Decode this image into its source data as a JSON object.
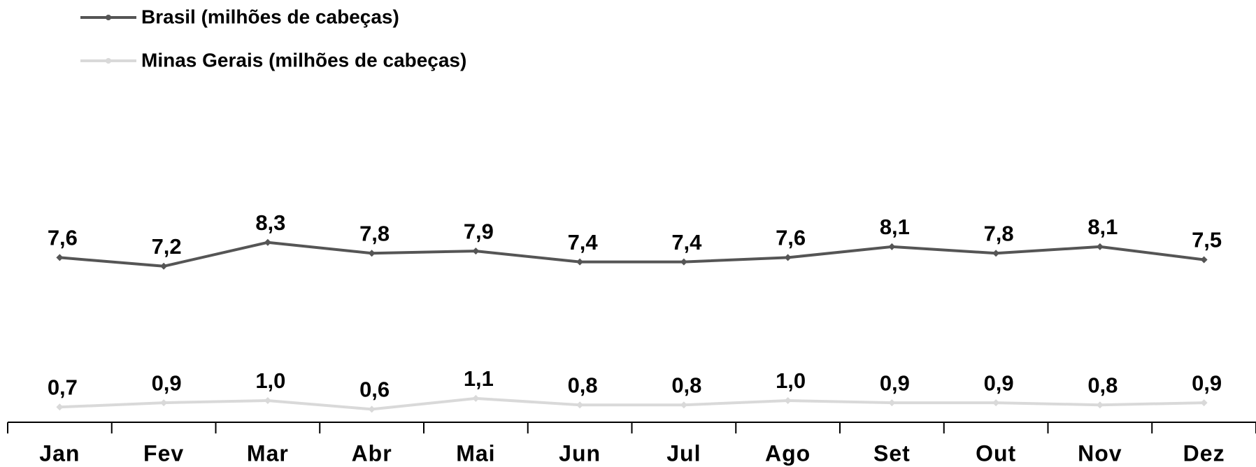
{
  "chart_data": {
    "type": "line",
    "categories": [
      "Jan",
      "Fev",
      "Mar",
      "Abr",
      "Mai",
      "Jun",
      "Jul",
      "Ago",
      "Set",
      "Out",
      "Nov",
      "Dez"
    ],
    "ylim": [
      0,
      18
    ],
    "series": [
      {
        "name": "Brasil (milhões de cabeças)",
        "color": "#555555",
        "values": [
          7.6,
          7.2,
          8.3,
          7.8,
          7.9,
          7.4,
          7.4,
          7.6,
          8.1,
          7.8,
          8.1,
          7.5
        ],
        "value_labels": [
          "7,6",
          "7,2",
          "8,3",
          "7,8",
          "7,9",
          "7,4",
          "7,4",
          "7,6",
          "8,1",
          "7,8",
          "8,1",
          "7,5"
        ]
      },
      {
        "name": "Minas Gerais (milhões de cabeças)",
        "color": "#d9d9d9",
        "values": [
          0.7,
          0.9,
          1.0,
          0.6,
          1.1,
          0.8,
          0.8,
          1.0,
          0.9,
          0.9,
          0.8,
          0.9
        ],
        "value_labels": [
          "0,7",
          "0,9",
          "1,0",
          "0,6",
          "1,1",
          "0,8",
          "0,8",
          "1,0",
          "0,9",
          "0,9",
          "0,8",
          "0,9"
        ]
      }
    ],
    "legend": "top-left"
  }
}
